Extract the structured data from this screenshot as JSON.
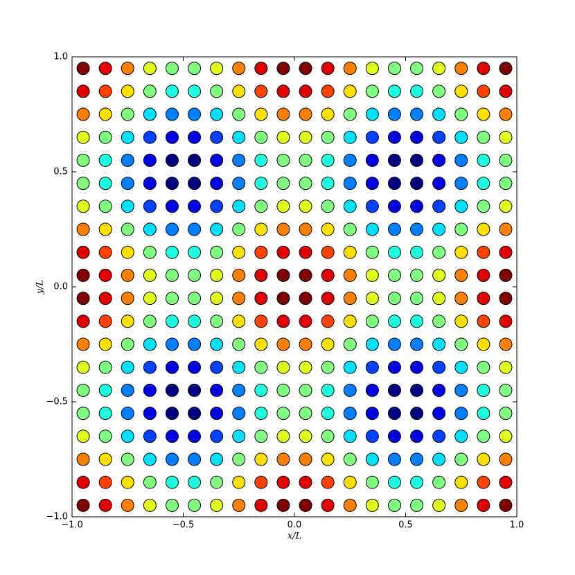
{
  "chart_data": {
    "type": "scatter",
    "xlabel": "x/L",
    "ylabel": "y/L",
    "x": [
      -0.95,
      -0.85,
      -0.75,
      -0.65,
      -0.55,
      -0.45,
      -0.35,
      -0.25,
      -0.15,
      -0.05,
      0.05,
      0.15,
      0.25,
      0.35,
      0.45,
      0.55,
      0.65,
      0.75,
      0.85,
      0.95
    ],
    "y": [
      -0.95,
      -0.85,
      -0.75,
      -0.65,
      -0.55,
      -0.45,
      -0.35,
      -0.25,
      -0.15,
      -0.05,
      0.05,
      0.15,
      0.25,
      0.35,
      0.45,
      0.55,
      0.65,
      0.75,
      0.85,
      0.95
    ],
    "values": [
      [
        1.9,
        1.54,
        0.95,
        0.36,
        0,
        0,
        0.36,
        0.95,
        1.54,
        1.9,
        1.9,
        1.54,
        0.95,
        0.36,
        0,
        0,
        0.36,
        0.95,
        1.54,
        1.9
      ],
      [
        1.54,
        1.18,
        0.59,
        0,
        -0.36,
        -0.36,
        0,
        0.59,
        1.18,
        1.54,
        1.54,
        1.18,
        0.59,
        0,
        -0.36,
        -0.36,
        0,
        0.59,
        1.18,
        1.54
      ],
      [
        0.95,
        0.59,
        0,
        -0.59,
        -0.95,
        -0.95,
        -0.59,
        0,
        0.59,
        0.95,
        0.95,
        0.59,
        0,
        -0.59,
        -0.95,
        -0.95,
        -0.59,
        0,
        0.59,
        0.95
      ],
      [
        0.36,
        0,
        -0.59,
        -1.18,
        -1.54,
        -1.54,
        -1.18,
        -0.59,
        0,
        0.36,
        0.36,
        0,
        -0.59,
        -1.18,
        -1.54,
        -1.54,
        -1.18,
        -0.59,
        0,
        0.36
      ],
      [
        0,
        -0.36,
        -0.95,
        -1.54,
        -1.9,
        -1.9,
        -1.54,
        -0.95,
        -0.36,
        0,
        0,
        -0.36,
        -0.95,
        -1.54,
        -1.9,
        -1.9,
        -1.54,
        -0.95,
        -0.36,
        0
      ],
      [
        0,
        -0.36,
        -0.95,
        -1.54,
        -1.9,
        -1.9,
        -1.54,
        -0.95,
        -0.36,
        0,
        0,
        -0.36,
        -0.95,
        -1.54,
        -1.9,
        -1.9,
        -1.54,
        -0.95,
        -0.36,
        0
      ],
      [
        0.36,
        0,
        -0.59,
        -1.18,
        -1.54,
        -1.54,
        -1.18,
        -0.59,
        0,
        0.36,
        0.36,
        0,
        -0.59,
        -1.18,
        -1.54,
        -1.54,
        -1.18,
        -0.59,
        0,
        0.36
      ],
      [
        0.95,
        0.59,
        0,
        -0.59,
        -0.95,
        -0.95,
        -0.59,
        0,
        0.59,
        0.95,
        0.95,
        0.59,
        0,
        -0.59,
        -0.95,
        -0.95,
        -0.59,
        0,
        0.59,
        0.95
      ],
      [
        1.54,
        1.18,
        0.59,
        0,
        -0.36,
        -0.36,
        0,
        0.59,
        1.18,
        1.54,
        1.54,
        1.18,
        0.59,
        0,
        -0.36,
        -0.36,
        0,
        0.59,
        1.18,
        1.54
      ],
      [
        1.9,
        1.54,
        0.95,
        0.36,
        0,
        0,
        0.36,
        0.95,
        1.54,
        1.9,
        1.9,
        1.54,
        0.95,
        0.36,
        0,
        0,
        0.36,
        0.95,
        1.54,
        1.9
      ],
      [
        1.9,
        1.54,
        0.95,
        0.36,
        0,
        0,
        0.36,
        0.95,
        1.54,
        1.9,
        1.9,
        1.54,
        0.95,
        0.36,
        0,
        0,
        0.36,
        0.95,
        1.54,
        1.9
      ],
      [
        1.54,
        1.18,
        0.59,
        0,
        -0.36,
        -0.36,
        0,
        0.59,
        1.18,
        1.54,
        1.54,
        1.18,
        0.59,
        0,
        -0.36,
        -0.36,
        0,
        0.59,
        1.18,
        1.54
      ],
      [
        0.95,
        0.59,
        0,
        -0.59,
        -0.95,
        -0.95,
        -0.59,
        0,
        0.59,
        0.95,
        0.95,
        0.59,
        0,
        -0.59,
        -0.95,
        -0.95,
        -0.59,
        0,
        0.59,
        0.95
      ],
      [
        0.36,
        0,
        -0.59,
        -1.18,
        -1.54,
        -1.54,
        -1.18,
        -0.59,
        0,
        0.36,
        0.36,
        0,
        -0.59,
        -1.18,
        -1.54,
        -1.54,
        -1.18,
        -0.59,
        0,
        0.36
      ],
      [
        0,
        -0.36,
        -0.95,
        -1.54,
        -1.9,
        -1.9,
        -1.54,
        -0.95,
        -0.36,
        0,
        0,
        -0.36,
        -0.95,
        -1.54,
        -1.9,
        -1.9,
        -1.54,
        -0.95,
        -0.36,
        0
      ],
      [
        0,
        -0.36,
        -0.95,
        -1.54,
        -1.9,
        -1.9,
        -1.54,
        -0.95,
        -0.36,
        0,
        0,
        -0.36,
        -0.95,
        -1.54,
        -1.9,
        -1.9,
        -1.54,
        -0.95,
        -0.36,
        0
      ],
      [
        0.36,
        0,
        -0.59,
        -1.18,
        -1.54,
        -1.54,
        -1.18,
        -0.59,
        0,
        0.36,
        0.36,
        0,
        -0.59,
        -1.18,
        -1.54,
        -1.54,
        -1.18,
        -0.59,
        0,
        0.36
      ],
      [
        0.95,
        0.59,
        0,
        -0.59,
        -0.95,
        -0.95,
        -0.59,
        0,
        0.59,
        0.95,
        0.95,
        0.59,
        0,
        -0.59,
        -0.95,
        -0.95,
        -0.59,
        0,
        0.59,
        0.95
      ],
      [
        1.54,
        1.18,
        0.59,
        0,
        -0.36,
        -0.36,
        0,
        0.59,
        1.18,
        1.54,
        1.54,
        1.18,
        0.59,
        0,
        -0.36,
        -0.36,
        0,
        0.59,
        1.18,
        1.54
      ],
      [
        1.9,
        1.54,
        0.95,
        0.36,
        0,
        0,
        0.36,
        0.95,
        1.54,
        1.9,
        1.9,
        1.54,
        0.95,
        0.36,
        0,
        0,
        0.36,
        0.95,
        1.54,
        1.9
      ]
    ],
    "colormap": "jet",
    "xlim": [
      -1.0,
      1.0
    ],
    "ylim": [
      -1.0,
      1.0
    ],
    "xticks": [
      {
        "value": -1.0,
        "label": "−1.0"
      },
      {
        "value": -0.5,
        "label": "−0.5"
      },
      {
        "value": 0.0,
        "label": "0.0"
      },
      {
        "value": 0.5,
        "label": "0.5"
      },
      {
        "value": 1.0,
        "label": "1.0"
      }
    ],
    "yticks": [
      {
        "value": -1.0,
        "label": "−1.0"
      },
      {
        "value": -0.5,
        "label": "−0.5"
      },
      {
        "value": 0.0,
        "label": "0.0"
      },
      {
        "value": 0.5,
        "label": "0.5"
      },
      {
        "value": 1.0,
        "label": "1.0"
      }
    ]
  }
}
